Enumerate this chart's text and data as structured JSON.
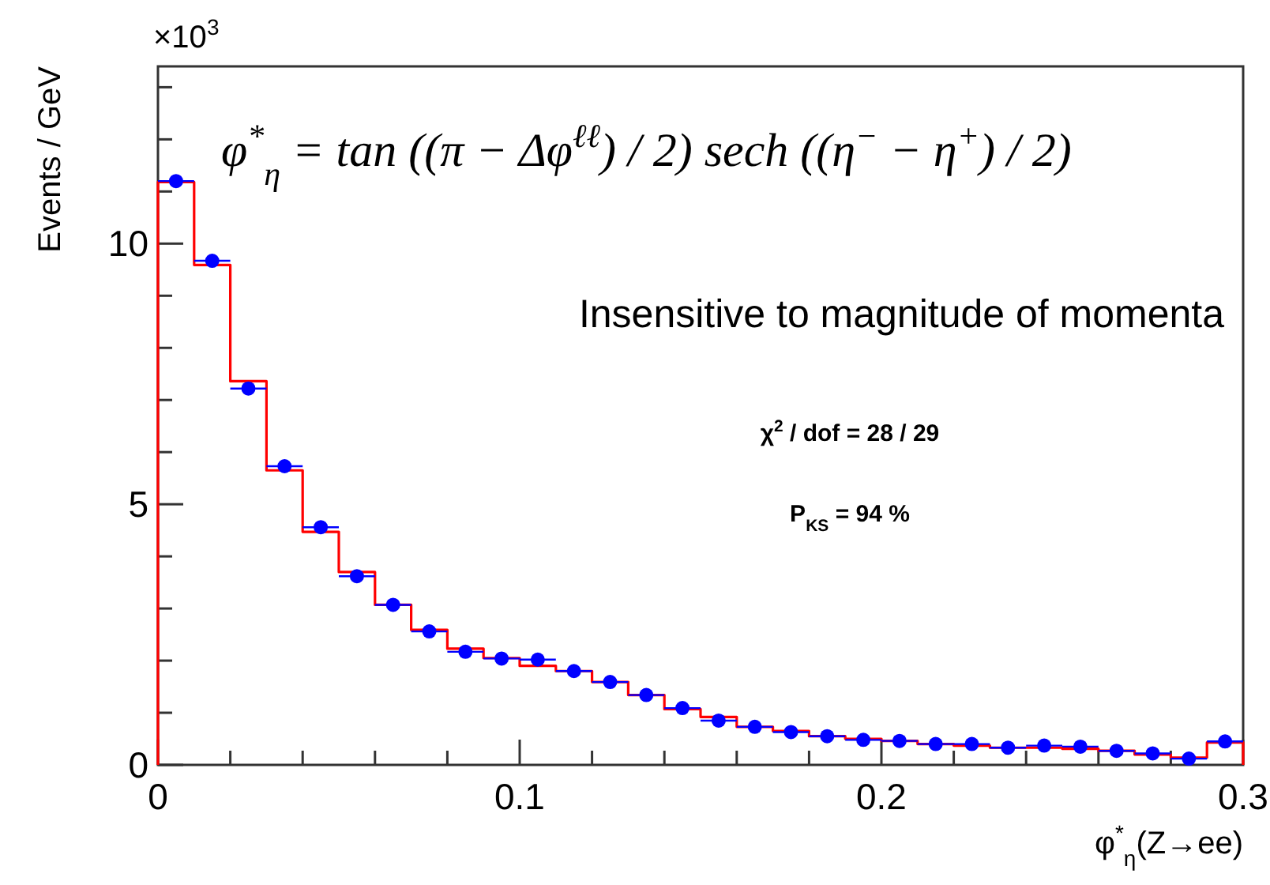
{
  "chart_data": {
    "type": "histogram",
    "xlabel": "φ$^{*}$$_{η}$(Z→ee)",
    "ylabel": "Events / GeV",
    "bins": [
      0,
      0.01,
      0.02,
      0.03,
      0.04,
      0.05,
      0.06,
      0.07,
      0.08,
      0.09,
      0.1,
      0.11,
      0.12,
      0.13,
      0.14,
      0.15,
      0.16,
      0.17,
      0.18,
      0.19,
      0.2,
      0.21,
      0.22,
      0.23,
      0.24,
      0.25,
      0.26,
      0.27,
      0.28,
      0.29,
      0.3
    ],
    "series": [
      {
        "color": "#ff0000",
        "values": [
          11.18,
          9.59,
          7.36,
          5.65,
          4.47,
          3.7,
          3.07,
          2.59,
          2.23,
          2.05,
          1.9,
          1.8,
          1.59,
          1.34,
          1.07,
          0.92,
          0.73,
          0.65,
          0.55,
          0.5,
          0.46,
          0.4,
          0.37,
          0.33,
          0.33,
          0.31,
          0.27,
          0.2,
          0.14,
          0.43
        ]
      },
      {
        "type": "scatter",
        "color": "#0000ff",
        "marker": "circle",
        "x": [
          0.005,
          0.015,
          0.025,
          0.035,
          0.045,
          0.055,
          0.065,
          0.075,
          0.085,
          0.095,
          0.105,
          0.115,
          0.125,
          0.135,
          0.145,
          0.155,
          0.165,
          0.175,
          0.185,
          0.195,
          0.205,
          0.215,
          0.225,
          0.235,
          0.245,
          0.255,
          0.265,
          0.275,
          0.285,
          0.295
        ],
        "values": [
          11.2,
          9.67,
          7.22,
          5.73,
          4.56,
          3.62,
          3.07,
          2.56,
          2.17,
          2.04,
          2.02,
          1.8,
          1.59,
          1.34,
          1.09,
          0.85,
          0.73,
          0.63,
          0.55,
          0.48,
          0.46,
          0.4,
          0.4,
          0.33,
          0.37,
          0.35,
          0.27,
          0.22,
          0.12,
          0.45
        ],
        "xerrors": [
          0.005,
          0.005,
          0.005,
          0.005,
          0.005,
          0.005,
          0.005,
          0.005,
          0.005,
          0.005,
          0.005,
          0.005,
          0.005,
          0.005,
          0.005,
          0.005,
          0.005,
          0.005,
          0.005,
          0.005,
          0.005,
          0.005,
          0.005,
          0.005,
          0.005,
          0.005,
          0.005,
          0.005,
          0.005,
          0.005
        ]
      }
    ],
    "xlim": [
      0,
      0.3
    ],
    "xticks": [
      0,
      {
        "value": 0.02,
        "label": null
      },
      {
        "value": 0.04,
        "label": null
      },
      {
        "value": 0.06,
        "label": null
      },
      {
        "value": 0.08,
        "label": null
      },
      0.1,
      {
        "value": 0.12,
        "label": null
      },
      {
        "value": 0.14,
        "label": null
      },
      {
        "value": 0.16,
        "label": null
      },
      {
        "value": 0.18,
        "label": null
      },
      0.2,
      {
        "value": 0.22,
        "label": null
      },
      {
        "value": 0.24,
        "label": null
      },
      {
        "value": 0.26,
        "label": null
      },
      {
        "value": 0.28,
        "label": null
      },
      0.3
    ],
    "ylim": [
      0,
      13.4
    ],
    "yticks": [
      0,
      {
        "value": 1,
        "label": null
      },
      {
        "value": 2,
        "label": null
      },
      {
        "value": 3,
        "label": null
      },
      {
        "value": 4,
        "label": null
      },
      5,
      {
        "value": 6,
        "label": null
      },
      {
        "value": 7,
        "label": null
      },
      {
        "value": 8,
        "label": null
      },
      {
        "value": 9,
        "label": null
      },
      10,
      {
        "value": 11,
        "label": null
      },
      {
        "value": 12,
        "label": null
      },
      {
        "value": 13,
        "label": null
      }
    ],
    "grid": false,
    "annotations": [
      "×10$^{3}$",
      "φ$^{*}$$_{η}$ = tan ((π − Δφ$^{ℓℓ}$) / 2) sech ((η$^{−}$ − η$^{+}$) / 2)",
      "Insensitive to magnitude of momenta",
      "χ$^{2}$ / dof = 28 / 29",
      "P$_{KS}$ = 94 %"
    ]
  }
}
